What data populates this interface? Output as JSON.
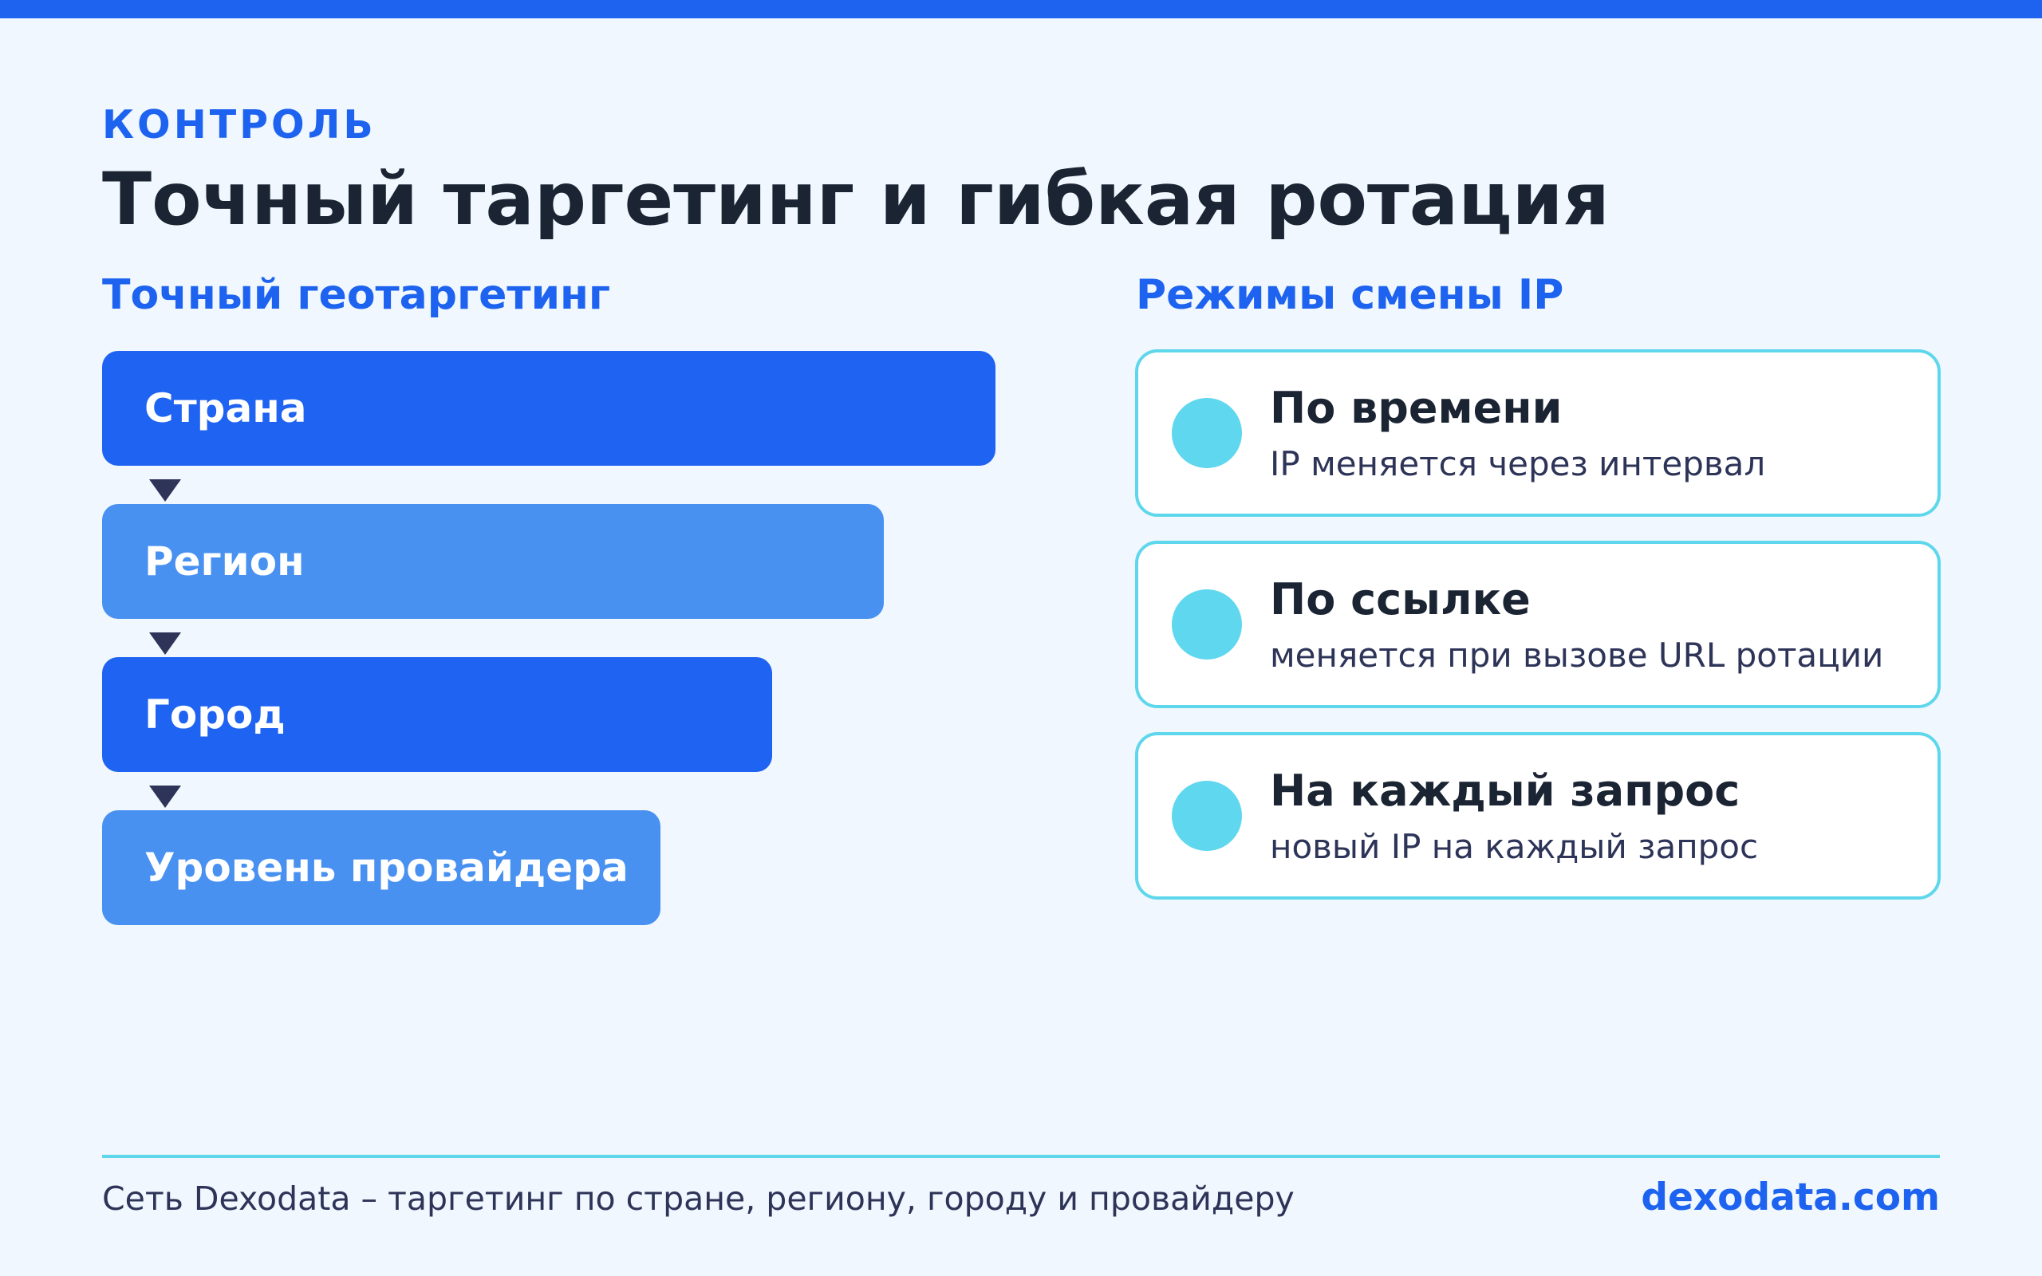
{
  "colors": {
    "accent": "#1d63f0",
    "accent_light": "#4891f1",
    "cyan": "#5ed7ec",
    "text_dark": "#1b2433",
    "text_muted": "#2d3458",
    "background": "#f0f7fe"
  },
  "eyebrow": "КОНТРОЛЬ",
  "title": "Точный таргетинг и гибкая ротация",
  "geotargeting": {
    "heading": "Точный геотаргетинг",
    "levels": [
      {
        "label": "Страна"
      },
      {
        "label": "Регион"
      },
      {
        "label": "Город"
      },
      {
        "label": "Уровень провайдера"
      }
    ]
  },
  "rotation": {
    "heading": "Режимы смены IP",
    "modes": [
      {
        "title": "По времени",
        "description": "IP меняется через интервал"
      },
      {
        "title": "По ссылке",
        "description": "меняется при вызове URL ротации"
      },
      {
        "title": "На каждый запрос",
        "description": "новый IP на каждый запрос"
      }
    ]
  },
  "footer": {
    "text": "Сеть Dexodata – таргетинг по стране, региону, городу и провайдеру",
    "link": "dexodata.com"
  }
}
